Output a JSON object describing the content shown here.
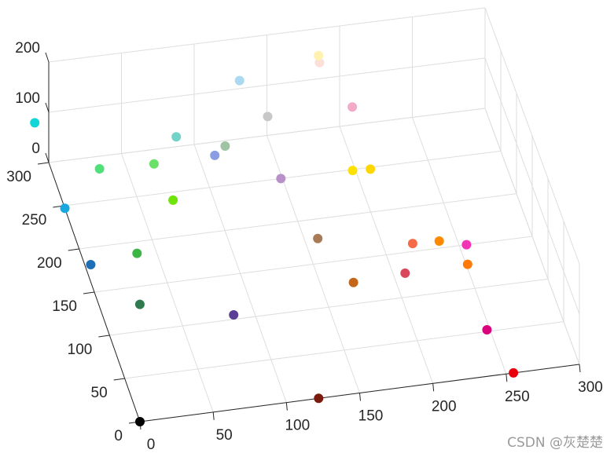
{
  "chart_data": {
    "type": "scatter3d",
    "x_ticks": [
      "0",
      "50",
      "100",
      "150",
      "200",
      "250",
      "300"
    ],
    "y_ticks": [
      "0",
      "50",
      "100",
      "150",
      "200",
      "250",
      "300"
    ],
    "z_ticks": [
      "0",
      "100",
      "200"
    ],
    "xlim": [
      0,
      300
    ],
    "ylim": [
      0,
      300
    ],
    "zlim": [
      0,
      200
    ],
    "grid": true,
    "points": [
      {
        "x": 0,
        "y": 0,
        "z": 0,
        "color": "#000000"
      },
      {
        "x": 122,
        "y": 0,
        "z": 0,
        "color": "#7a1a0c"
      },
      {
        "x": 255,
        "y": 0,
        "z": 0,
        "color": "#e8000c"
      },
      {
        "x": 248,
        "y": 52,
        "z": 0,
        "color": "#d9047c"
      },
      {
        "x": 86,
        "y": 105,
        "z": 0,
        "color": "#5a3d94"
      },
      {
        "x": 172,
        "y": 124,
        "z": 0,
        "color": "#c4661a"
      },
      {
        "x": 208,
        "y": 127,
        "z": 0,
        "color": "#d9485a"
      },
      {
        "x": 251,
        "y": 128,
        "z": 0,
        "color": "#ff7a0a"
      },
      {
        "x": 255,
        "y": 150,
        "z": 0,
        "color": "#f235b4"
      },
      {
        "x": 238,
        "y": 158,
        "z": 0,
        "color": "#ff8a00"
      },
      {
        "x": 220,
        "y": 159,
        "z": 0,
        "color": "#f46b45"
      },
      {
        "x": 159,
        "y": 178,
        "z": 0,
        "color": "#a87a55"
      },
      {
        "x": 27,
        "y": 130,
        "z": 0,
        "color": "#2f7a4f"
      },
      {
        "x": 4,
        "y": 181,
        "z": 0,
        "color": "#1f6fb4"
      },
      {
        "x": 37,
        "y": 187,
        "z": 0,
        "color": "#3db544"
      },
      {
        "x": 73,
        "y": 241,
        "z": 0,
        "color": "#6fe30a"
      },
      {
        "x": 0,
        "y": 247,
        "z": 0,
        "color": "#19a7e0"
      },
      {
        "x": 149,
        "y": 250,
        "z": 0,
        "color": "#b991c9"
      },
      {
        "x": 198,
        "y": 249,
        "z": 0,
        "color": "#ffe100"
      },
      {
        "x": 210,
        "y": 248,
        "z": 0,
        "color": "#ffd700"
      },
      {
        "x": 32,
        "y": 286,
        "z": 0,
        "color": "#50e07a"
      },
      {
        "x": 69,
        "y": 284,
        "z": 0,
        "color": "#6ae069"
      },
      {
        "x": 111,
        "y": 285,
        "z": 0,
        "color": "#8a9de3"
      },
      {
        "x": 120,
        "y": 294,
        "z": 0,
        "color": "#9fc4a4"
      },
      {
        "x": 90,
        "y": 311,
        "z": 0,
        "color": "#72d3c8"
      },
      {
        "x": 155,
        "y": 321,
        "z": 0,
        "color": "#c8c8c8"
      },
      {
        "x": 213,
        "y": 320,
        "z": 0,
        "color": "#f2aac8"
      },
      {
        "x": 145,
        "y": 365,
        "z": 0,
        "color": "#abd9f0"
      },
      {
        "x": 202,
        "y": 374,
        "z": 0,
        "color": "#fce0d8"
      },
      {
        "x": 203,
        "y": 382,
        "z": 0,
        "color": "#fff2b0"
      },
      {
        "x": 0,
        "y": 346,
        "z": 0,
        "color": "#12d6d6"
      }
    ]
  },
  "watermark": "CSDN @灰楚楚"
}
